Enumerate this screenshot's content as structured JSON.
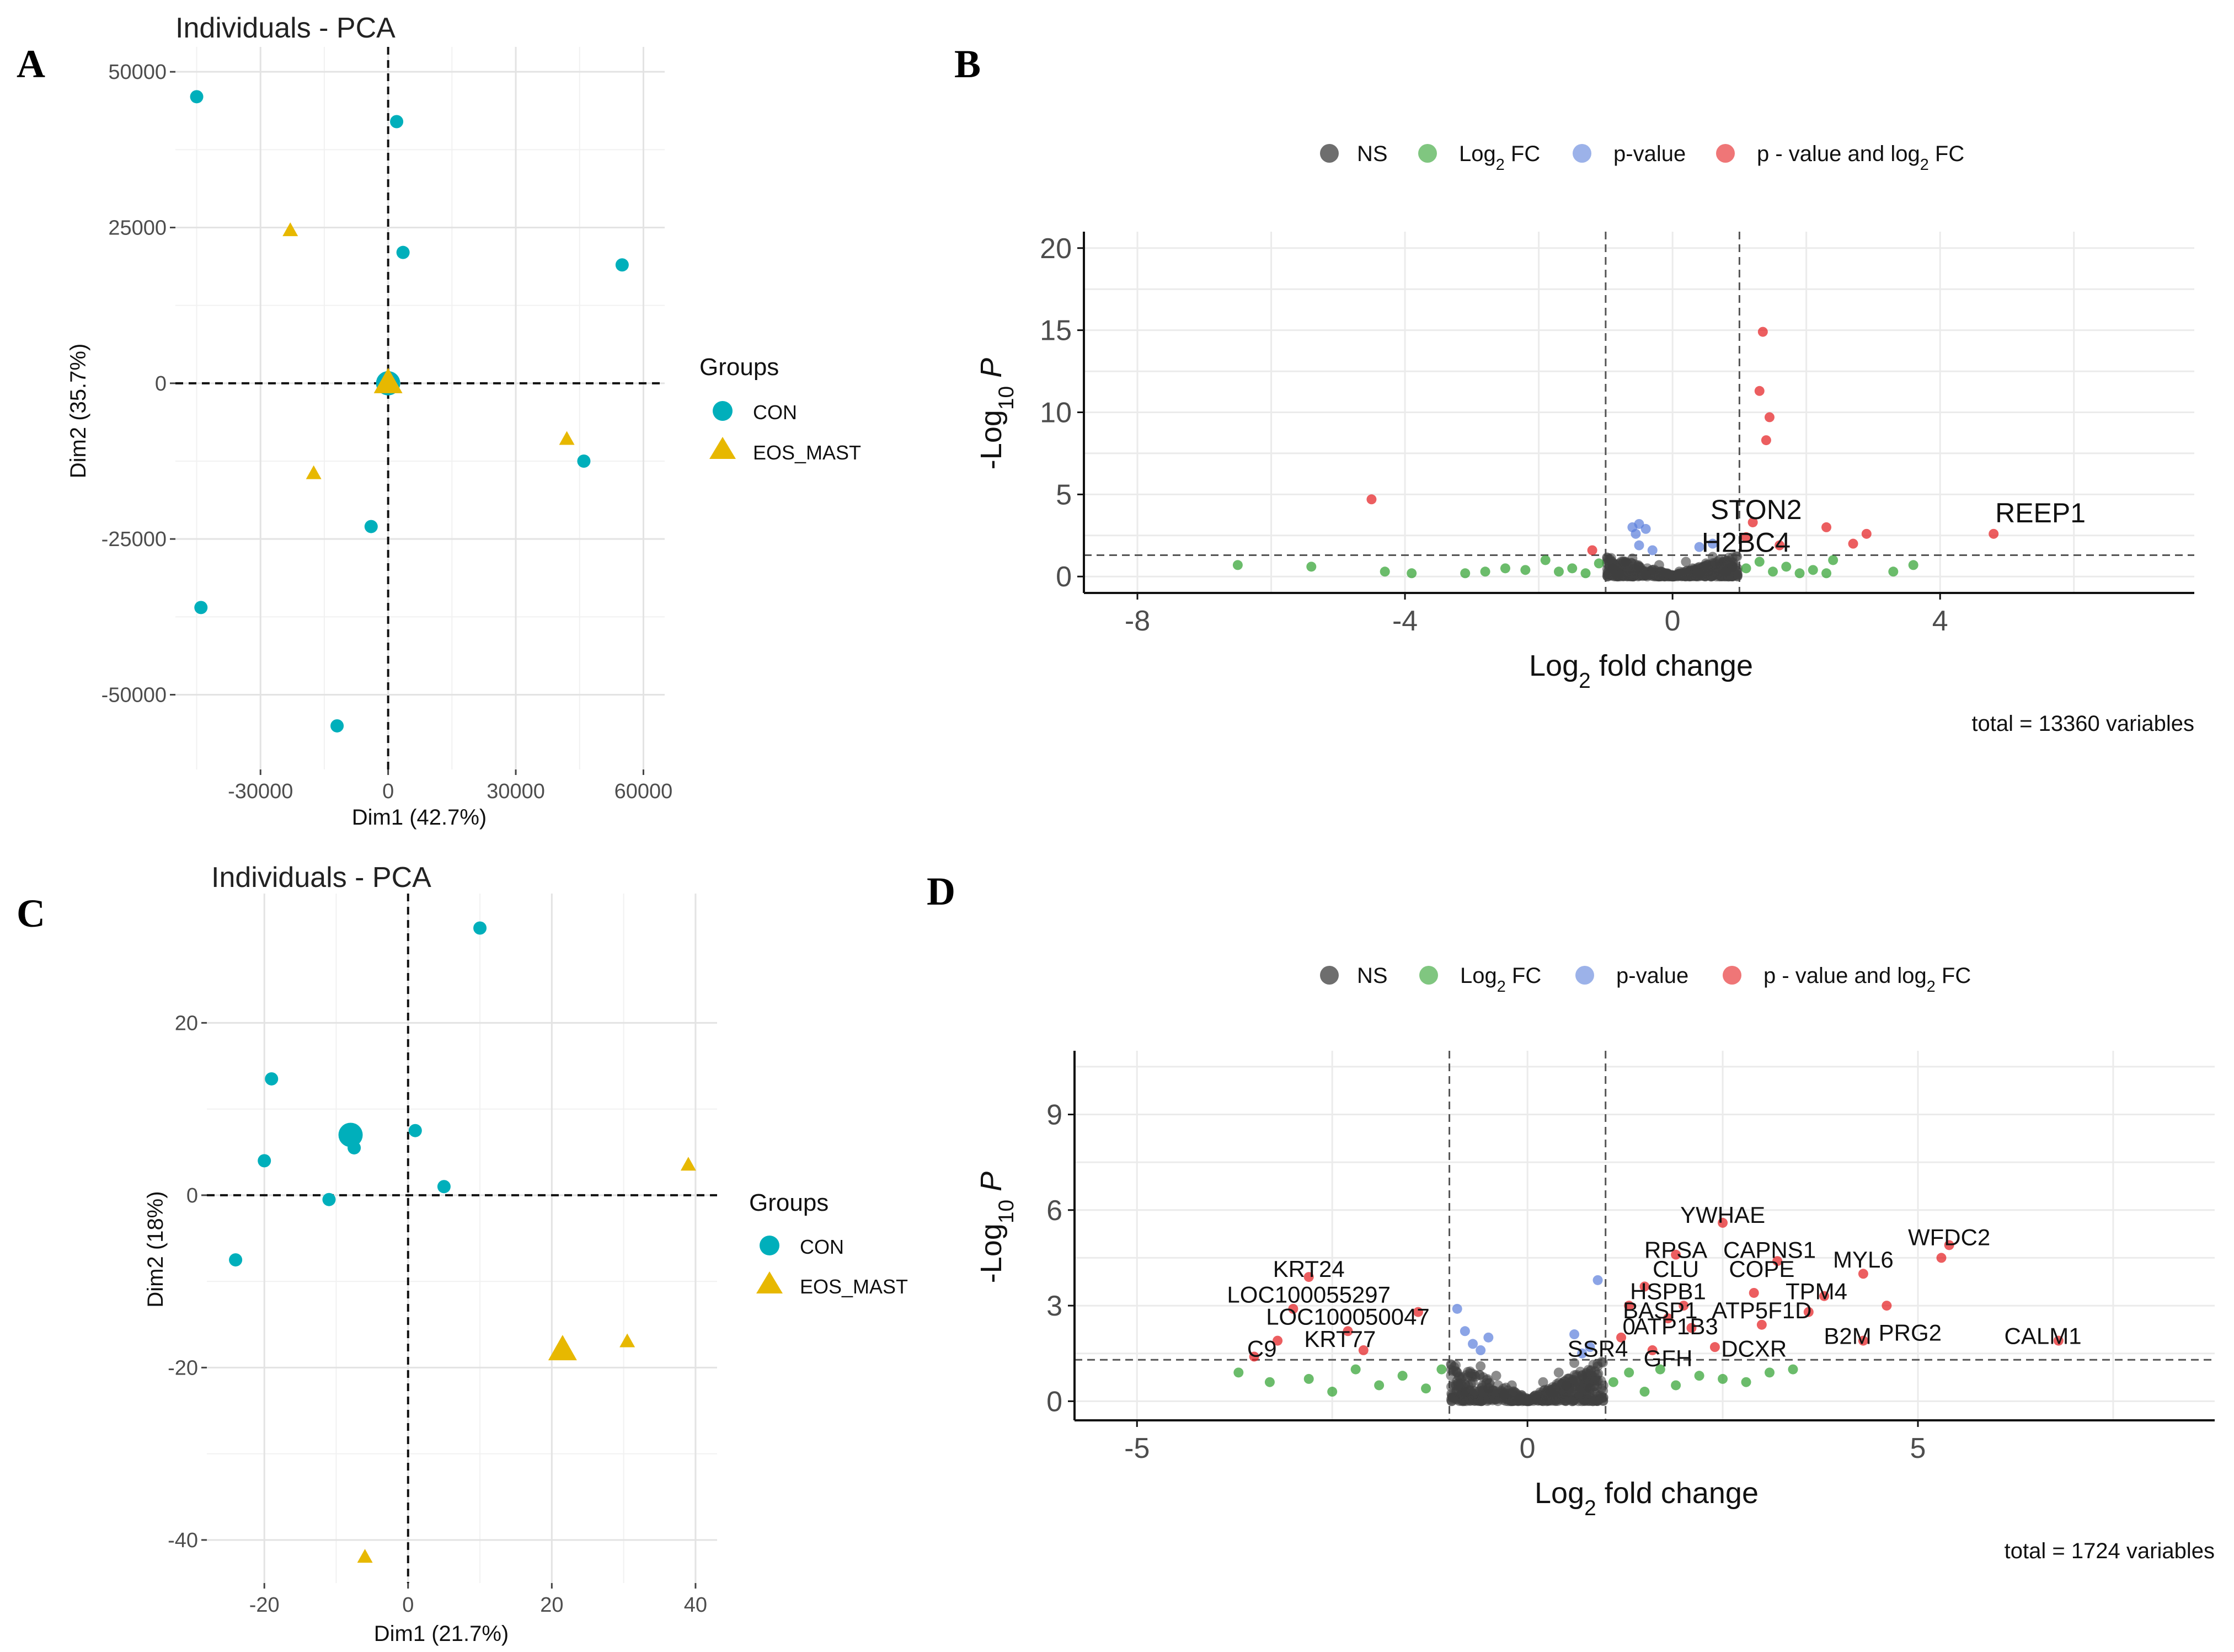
{
  "panels": [
    {
      "letter": "A",
      "kind": "pca",
      "title": "Individuals - PCA",
      "xlabel": "Dim1 (42.7%)",
      "ylabel": "Dim2 (35.7%)",
      "xlim": [
        -50000,
        65000
      ],
      "ylim": [
        -62000,
        54000
      ],
      "xticks": [
        {
          "v": -30000,
          "t": "-30000"
        },
        {
          "v": 0,
          "t": "0"
        },
        {
          "v": 30000,
          "t": "30000"
        },
        {
          "v": 60000,
          "t": "60000"
        }
      ],
      "yticks": [
        {
          "v": -50000,
          "t": "-50000"
        },
        {
          "v": -25000,
          "t": "-25000"
        },
        {
          "v": 0,
          "t": "0"
        },
        {
          "v": 25000,
          "t": "25000"
        },
        {
          "v": 50000,
          "t": "50000"
        }
      ],
      "legend": {
        "title": "Groups",
        "items": [
          "CON",
          "EOS_MAST"
        ]
      }
    },
    {
      "letter": "B",
      "kind": "volcano",
      "xlabel": "Log2 fold change",
      "ylabel": "-Log10 P",
      "xlim": [
        -8.8,
        7.8
      ],
      "ylim": [
        -1,
        21
      ],
      "xticks": [
        {
          "v": -8,
          "t": "-8"
        },
        {
          "v": -4,
          "t": "-4"
        },
        {
          "v": 0,
          "t": "0"
        },
        {
          "v": 4,
          "t": "4"
        }
      ],
      "yticks": [
        {
          "v": 0,
          "t": "0"
        },
        {
          "v": 5,
          "t": "5"
        },
        {
          "v": 10,
          "t": "10"
        },
        {
          "v": 15,
          "t": "15"
        },
        {
          "v": 20,
          "t": "20"
        }
      ],
      "fc_cutoff": 1,
      "p_cutoff": 1.3,
      "legend": [
        "NS",
        "Log2 FC",
        "p-value",
        "p - value and log2 FC"
      ],
      "caption": "total = 13360 variables"
    },
    {
      "letter": "C",
      "kind": "pca",
      "title": "Individuals - PCA",
      "xlabel": "Dim1 (21.7%)",
      "ylabel": "Dim2 (18%)",
      "xlim": [
        -28,
        43
      ],
      "ylim": [
        -45,
        35
      ],
      "xticks": [
        {
          "v": -20,
          "t": "-20"
        },
        {
          "v": 0,
          "t": "0"
        },
        {
          "v": 20,
          "t": "20"
        },
        {
          "v": 40,
          "t": "40"
        }
      ],
      "yticks": [
        {
          "v": -40,
          "t": "-40"
        },
        {
          "v": -20,
          "t": "-20"
        },
        {
          "v": 0,
          "t": "0"
        },
        {
          "v": 20,
          "t": "20"
        }
      ],
      "legend": {
        "title": "Groups",
        "items": [
          "CON",
          "EOS_MAST"
        ]
      }
    },
    {
      "letter": "D",
      "kind": "volcano",
      "xlabel": "Log2 fold change",
      "ylabel": "-Log10 P",
      "xlim": [
        -5.8,
        8.8
      ],
      "ylim": [
        -0.6,
        11
      ],
      "xticks": [
        {
          "v": -5,
          "t": "-5"
        },
        {
          "v": 0,
          "t": "0"
        },
        {
          "v": 5,
          "t": "5"
        }
      ],
      "yticks": [
        {
          "v": 0,
          "t": "0"
        },
        {
          "v": 3,
          "t": "3"
        },
        {
          "v": 6,
          "t": "6"
        },
        {
          "v": 9,
          "t": "9"
        }
      ],
      "fc_cutoff": 1,
      "p_cutoff": 1.3,
      "legend": [
        "NS",
        "Log2 FC",
        "p-value",
        "p - value and log2 FC"
      ],
      "caption": "total = 1724 variables"
    }
  ],
  "chart_data": [
    {
      "type": "scatter",
      "panel": "A",
      "title": "Individuals - PCA",
      "xlabel": "Dim1 (42.7%)",
      "ylabel": "Dim2 (35.7%)",
      "xlim": [
        -50000,
        65000
      ],
      "ylim": [
        -62000,
        54000
      ],
      "series": [
        {
          "name": "CON",
          "color": "#00AFBB",
          "points": [
            [
              -45000,
              46000
            ],
            [
              2000,
              42000
            ],
            [
              3500,
              21000
            ],
            [
              55000,
              19000
            ],
            [
              46000,
              -12500
            ],
            [
              -4000,
              -23000
            ],
            [
              -44000,
              -36000
            ],
            [
              -12000,
              -55000
            ]
          ],
          "centroid": [
            0,
            0
          ]
        },
        {
          "name": "EOS_MAST",
          "color": "#E7B800",
          "points": [
            [
              -23000,
              24500
            ],
            [
              -17500,
              -14500
            ],
            [
              42000,
              -9000
            ]
          ],
          "centroid": [
            0,
            0
          ]
        }
      ]
    },
    {
      "type": "scatter",
      "subtype": "volcano",
      "panel": "B",
      "xlabel": "Log2 fold change",
      "ylabel": "-Log10 P",
      "xlim": [
        -8.8,
        7.8
      ],
      "ylim": [
        -1,
        21
      ],
      "fc_cutoff": 1,
      "p_cutoff": 1.3,
      "total_variables": 13360,
      "series": [
        {
          "name": "NS",
          "color": "#404040",
          "points": [
            [
              -0.9,
              0.5
            ],
            [
              -0.7,
              0.9
            ],
            [
              -0.5,
              0.6
            ],
            [
              -0.3,
              0.4
            ],
            [
              -0.1,
              0.2
            ],
            [
              0.1,
              0.3
            ],
            [
              0.3,
              0.5
            ],
            [
              0.5,
              0.8
            ],
            [
              0.7,
              1.0
            ],
            [
              0.9,
              0.6
            ],
            [
              -0.8,
              0.2
            ],
            [
              -0.4,
              0.1
            ],
            [
              0,
              0.05
            ],
            [
              0.4,
              0.2
            ],
            [
              0.8,
              0.3
            ],
            [
              -0.6,
              1.1
            ],
            [
              0.6,
              1.2
            ],
            [
              -0.2,
              0.7
            ],
            [
              0.2,
              0.9
            ]
          ]
        },
        {
          "name": "Log2 FC",
          "color": "#2CA02C",
          "points": [
            [
              -6.5,
              0.7
            ],
            [
              -5.4,
              0.6
            ],
            [
              -4.3,
              0.3
            ],
            [
              -3.9,
              0.2
            ],
            [
              -3.1,
              0.2
            ],
            [
              -2.8,
              0.3
            ],
            [
              -2.5,
              0.5
            ],
            [
              -2.2,
              0.4
            ],
            [
              -1.9,
              1.0
            ],
            [
              -1.7,
              0.3
            ],
            [
              -1.5,
              0.5
            ],
            [
              -1.3,
              0.2
            ],
            [
              -1.1,
              0.8
            ],
            [
              1.1,
              0.5
            ],
            [
              1.3,
              0.9
            ],
            [
              1.5,
              0.3
            ],
            [
              1.7,
              0.6
            ],
            [
              1.9,
              0.2
            ],
            [
              2.1,
              0.4
            ],
            [
              2.3,
              0.2
            ],
            [
              2.4,
              1.0
            ],
            [
              3.3,
              0.3
            ],
            [
              3.6,
              0.7
            ]
          ]
        },
        {
          "name": "p-value",
          "color": "#5A7EDB",
          "points": [
            [
              -0.6,
              3.0
            ],
            [
              -0.5,
              3.2
            ],
            [
              -0.55,
              2.6
            ],
            [
              -0.4,
              2.9
            ],
            [
              -0.5,
              1.9
            ],
            [
              -0.3,
              1.6
            ],
            [
              0.4,
              1.8
            ],
            [
              0.6,
              2.0
            ]
          ]
        },
        {
          "name": "p - value and log2 FC",
          "color": "#E41A1C",
          "points": [
            [
              1.35,
              14.9
            ],
            [
              1.3,
              11.3
            ],
            [
              1.45,
              9.7
            ],
            [
              1.4,
              8.3
            ],
            [
              -4.5,
              4.7
            ],
            [
              1.2,
              3.3
            ],
            [
              1.1,
              2.4
            ],
            [
              2.3,
              3.0
            ],
            [
              2.7,
              2.0
            ],
            [
              2.9,
              2.6
            ],
            [
              -1.2,
              1.6
            ],
            [
              1.6,
              1.9
            ],
            [
              4.8,
              2.6
            ]
          ]
        }
      ],
      "annotations": [
        {
          "label": "STON2",
          "x": 1.25,
          "y": 3.5
        },
        {
          "label": "H2BC4",
          "x": 1.1,
          "y": 1.5
        },
        {
          "label": "REEP1",
          "x": 5.5,
          "y": 3.3
        }
      ]
    },
    {
      "type": "scatter",
      "panel": "C",
      "title": "Individuals - PCA",
      "xlabel": "Dim1 (21.7%)",
      "ylabel": "Dim2 (18%)",
      "xlim": [
        -28,
        43
      ],
      "ylim": [
        -45,
        35
      ],
      "series": [
        {
          "name": "CON",
          "color": "#00AFBB",
          "points": [
            [
              10,
              31
            ],
            [
              -19,
              13.5
            ],
            [
              -20,
              4
            ],
            [
              -7.5,
              5.5
            ],
            [
              1,
              7.5
            ],
            [
              5,
              1
            ],
            [
              -11,
              -0.5
            ],
            [
              -24,
              -7.5
            ]
          ],
          "centroid": [
            -8,
            7
          ]
        },
        {
          "name": "EOS_MAST",
          "color": "#E7B800",
          "points": [
            [
              39,
              3.5
            ],
            [
              30.5,
              -17
            ],
            [
              -6,
              -42
            ]
          ],
          "centroid": [
            21.5,
            -18
          ]
        }
      ]
    },
    {
      "type": "scatter",
      "subtype": "volcano",
      "panel": "D",
      "xlabel": "Log2 fold change",
      "ylabel": "-Log10 P",
      "xlim": [
        -5.8,
        8.8
      ],
      "ylim": [
        -0.6,
        11
      ],
      "fc_cutoff": 1,
      "p_cutoff": 1.3,
      "total_variables": 1724,
      "series": [
        {
          "name": "NS",
          "color": "#404040",
          "points": [
            [
              -0.9,
              0.9
            ],
            [
              -0.7,
              0.6
            ],
            [
              -0.5,
              0.4
            ],
            [
              -0.3,
              0.2
            ],
            [
              -0.1,
              0.1
            ],
            [
              0.1,
              0.1
            ],
            [
              0.3,
              0.3
            ],
            [
              0.5,
              0.5
            ],
            [
              0.7,
              0.8
            ],
            [
              0.9,
              1.1
            ],
            [
              -0.6,
              1.1
            ],
            [
              0.6,
              1.2
            ],
            [
              -0.2,
              0.5
            ],
            [
              0.2,
              0.6
            ],
            [
              -0.8,
              0.3
            ],
            [
              0.8,
              0.4
            ],
            [
              0,
              0.05
            ],
            [
              -0.4,
              0.8
            ],
            [
              0.4,
              0.9
            ]
          ]
        },
        {
          "name": "Log2 FC",
          "color": "#2CA02C",
          "points": [
            [
              -3.7,
              0.9
            ],
            [
              -3.3,
              0.6
            ],
            [
              -2.8,
              0.7
            ],
            [
              -2.5,
              0.3
            ],
            [
              -2.2,
              1.0
            ],
            [
              -1.9,
              0.5
            ],
            [
              -1.6,
              0.8
            ],
            [
              -1.3,
              0.4
            ],
            [
              -1.1,
              1.0
            ],
            [
              1.1,
              0.6
            ],
            [
              1.3,
              0.9
            ],
            [
              1.5,
              0.3
            ],
            [
              1.7,
              1.0
            ],
            [
              1.9,
              0.5
            ],
            [
              2.2,
              0.8
            ],
            [
              2.5,
              0.7
            ],
            [
              2.8,
              0.6
            ],
            [
              3.1,
              0.9
            ],
            [
              3.4,
              1.0
            ]
          ]
        },
        {
          "name": "p-value",
          "color": "#5A7EDB",
          "points": [
            [
              -0.9,
              2.9
            ],
            [
              -0.8,
              2.2
            ],
            [
              -0.7,
              1.8
            ],
            [
              -0.6,
              1.6
            ],
            [
              -0.5,
              2.0
            ],
            [
              0.6,
              2.1
            ],
            [
              0.8,
              1.7
            ],
            [
              0.9,
              3.8
            ],
            [
              0.7,
              1.5
            ]
          ]
        },
        {
          "name": "p - value and log2 FC",
          "color": "#E41A1C",
          "points": [
            [
              -2.8,
              3.9
            ],
            [
              -3.0,
              2.9
            ],
            [
              -2.3,
              2.2
            ],
            [
              -3.2,
              1.9
            ],
            [
              -3.5,
              1.4
            ],
            [
              -1.4,
              2.8
            ],
            [
              -2.1,
              1.6
            ],
            [
              2.5,
              5.6
            ],
            [
              1.9,
              4.6
            ],
            [
              3.2,
              4.4
            ],
            [
              4.3,
              4.0
            ],
            [
              1.5,
              3.6
            ],
            [
              2.9,
              3.4
            ],
            [
              3.8,
              3.3
            ],
            [
              1.3,
              3.0
            ],
            [
              3.0,
              2.4
            ],
            [
              2.1,
              2.3
            ],
            [
              3.6,
              2.8
            ],
            [
              4.6,
              3.0
            ],
            [
              5.4,
              4.9
            ],
            [
              5.3,
              4.5
            ],
            [
              4.3,
              1.9
            ],
            [
              6.8,
              1.9
            ],
            [
              1.6,
              1.6
            ],
            [
              2.4,
              1.7
            ],
            [
              1.2,
              2.0
            ],
            [
              2.0,
              3.0
            ],
            [
              1.8,
              2.6
            ]
          ]
        }
      ],
      "annotations": [
        {
          "label": "YWHAE",
          "x": 2.5,
          "y": 5.6
        },
        {
          "label": "WFDC2",
          "x": 5.4,
          "y": 4.9
        },
        {
          "label": "RPSA",
          "x": 1.9,
          "y": 4.5
        },
        {
          "label": "CAPNS1",
          "x": 3.1,
          "y": 4.5
        },
        {
          "label": "MYL6",
          "x": 4.3,
          "y": 4.2
        },
        {
          "label": "CLU",
          "x": 1.9,
          "y": 3.9
        },
        {
          "label": "COPE",
          "x": 3.0,
          "y": 3.9
        },
        {
          "label": "HSPB1",
          "x": 1.8,
          "y": 3.2
        },
        {
          "label": "TPM4",
          "x": 3.7,
          "y": 3.2
        },
        {
          "label": "BASP1",
          "x": 1.7,
          "y": 2.6
        },
        {
          "label": "ATP5F1D",
          "x": 3.0,
          "y": 2.6
        },
        {
          "label": "0",
          "x": 1.3,
          "y": 2.1
        },
        {
          "label": "ATP1B3",
          "x": 1.9,
          "y": 2.1
        },
        {
          "label": "SSR4",
          "x": 0.9,
          "y": 1.4
        },
        {
          "label": "DCXR",
          "x": 2.9,
          "y": 1.4
        },
        {
          "label": "GFH",
          "x": 1.8,
          "y": 1.1
        },
        {
          "label": "B2M",
          "x": 4.1,
          "y": 1.8
        },
        {
          "label": "PRG2",
          "x": 4.9,
          "y": 1.9
        },
        {
          "label": "CALM1",
          "x": 6.6,
          "y": 1.8
        },
        {
          "label": "KRT24",
          "x": -2.8,
          "y": 3.9
        },
        {
          "label": "LOC100055297",
          "x": -2.8,
          "y": 3.1
        },
        {
          "label": "LOC100050047",
          "x": -2.3,
          "y": 2.4
        },
        {
          "label": "KRT77",
          "x": -2.4,
          "y": 1.7
        },
        {
          "label": "C9",
          "x": -3.4,
          "y": 1.4
        }
      ]
    }
  ]
}
